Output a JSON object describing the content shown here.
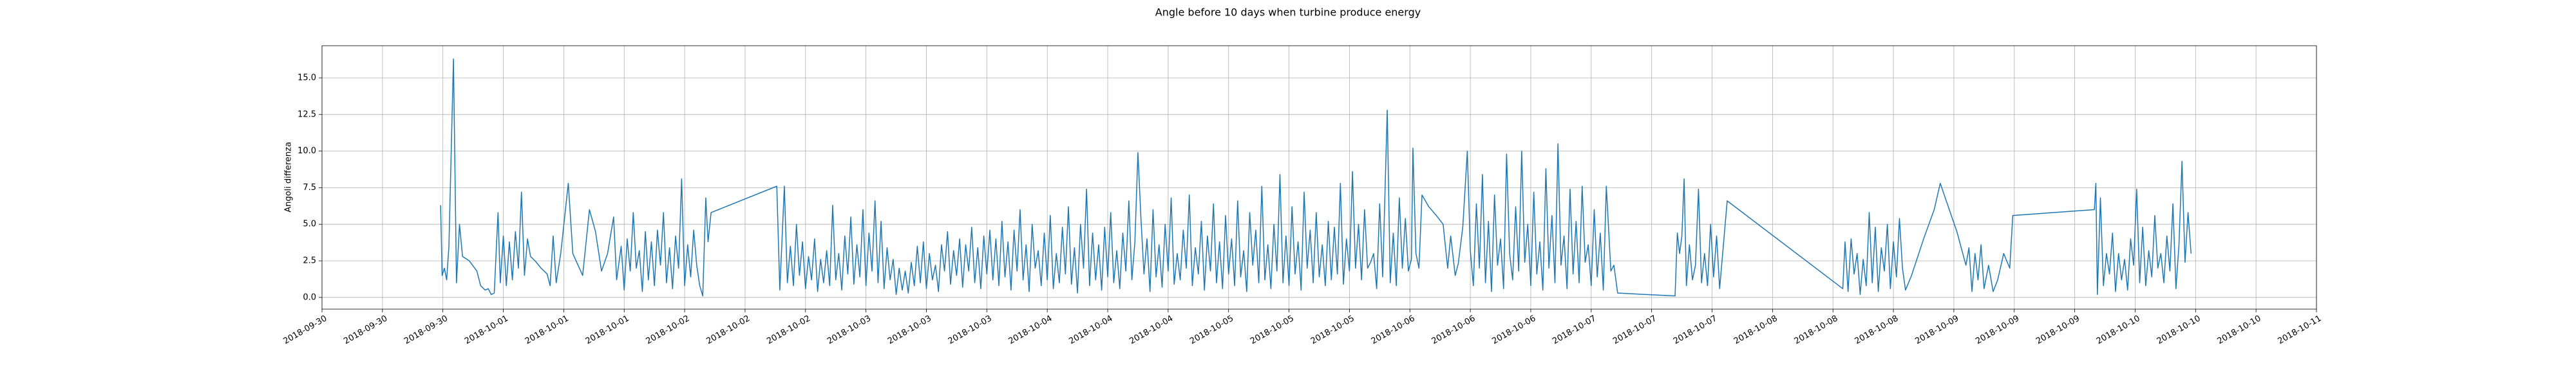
{
  "chart_data": {
    "type": "line",
    "title": "Angle before 10 days when turbine produce energy",
    "y_label": "Angoli differenza",
    "color": "#1f77b4",
    "grid": true,
    "xlim": [
      0,
      264
    ],
    "ylim": [
      -0.8,
      17.2
    ],
    "xticks": [
      {
        "value": 0,
        "label": "2018-09-30"
      },
      {
        "value": 8,
        "label": "2018-09-30"
      },
      {
        "value": 16,
        "label": "2018-09-30"
      },
      {
        "value": 24,
        "label": "2018-10-01"
      },
      {
        "value": 32,
        "label": "2018-10-01"
      },
      {
        "value": 40,
        "label": "2018-10-01"
      },
      {
        "value": 48,
        "label": "2018-10-02"
      },
      {
        "value": 56,
        "label": "2018-10-02"
      },
      {
        "value": 64,
        "label": "2018-10-02"
      },
      {
        "value": 72,
        "label": "2018-10-03"
      },
      {
        "value": 80,
        "label": "2018-10-03"
      },
      {
        "value": 88,
        "label": "2018-10-03"
      },
      {
        "value": 96,
        "label": "2018-10-04"
      },
      {
        "value": 104,
        "label": "2018-10-04"
      },
      {
        "value": 112,
        "label": "2018-10-04"
      },
      {
        "value": 120,
        "label": "2018-10-05"
      },
      {
        "value": 128,
        "label": "2018-10-05"
      },
      {
        "value": 136,
        "label": "2018-10-05"
      },
      {
        "value": 144,
        "label": "2018-10-06"
      },
      {
        "value": 152,
        "label": "2018-10-06"
      },
      {
        "value": 160,
        "label": "2018-10-06"
      },
      {
        "value": 168,
        "label": "2018-10-07"
      },
      {
        "value": 176,
        "label": "2018-10-07"
      },
      {
        "value": 184,
        "label": "2018-10-07"
      },
      {
        "value": 192,
        "label": "2018-10-08"
      },
      {
        "value": 200,
        "label": "2018-10-08"
      },
      {
        "value": 208,
        "label": "2018-10-08"
      },
      {
        "value": 216,
        "label": "2018-10-09"
      },
      {
        "value": 224,
        "label": "2018-10-09"
      },
      {
        "value": 232,
        "label": "2018-10-09"
      },
      {
        "value": 240,
        "label": "2018-10-10"
      },
      {
        "value": 248,
        "label": "2018-10-10"
      },
      {
        "value": 256,
        "label": "2018-10-10"
      },
      {
        "value": 264,
        "label": "2018-10-11"
      }
    ],
    "yticks": [
      {
        "value": 0,
        "label": "0.0"
      },
      2.5,
      {
        "value": 5,
        "label": "5.0"
      },
      7.5,
      {
        "value": 10,
        "label": "10.0"
      },
      12.5,
      {
        "value": 15,
        "label": "15.0"
      }
    ],
    "x": [
      15.7,
      15.9,
      16.2,
      16.5,
      16.8,
      17.4,
      17.8,
      18.2,
      18.6,
      19.5,
      20.5,
      21.0,
      21.6,
      22.0,
      22.4,
      22.8,
      23.3,
      23.6,
      24.0,
      24.4,
      24.8,
      25.2,
      25.6,
      26.0,
      26.4,
      26.8,
      27.2,
      27.6,
      28.2,
      29.0,
      29.8,
      30.2,
      30.6,
      31.0,
      31.6,
      32.6,
      33.2,
      34.5,
      35.4,
      36.2,
      37.0,
      37.8,
      38.6,
      39.0,
      39.6,
      40.0,
      40.4,
      40.8,
      41.2,
      41.6,
      42.0,
      42.4,
      42.8,
      43.2,
      43.6,
      44.0,
      44.4,
      44.8,
      45.2,
      45.6,
      46.0,
      46.4,
      46.8,
      47.2,
      47.6,
      48.0,
      48.4,
      48.8,
      49.2,
      49.6,
      50.0,
      50.4,
      50.8,
      51.1,
      51.5,
      60.2,
      60.6,
      61.2,
      61.6,
      62.0,
      62.4,
      62.8,
      63.2,
      63.6,
      64.0,
      64.4,
      64.8,
      65.2,
      65.6,
      66.0,
      66.4,
      66.8,
      67.2,
      67.6,
      68.0,
      68.4,
      68.8,
      69.2,
      69.6,
      70.0,
      70.4,
      70.8,
      71.2,
      71.6,
      72.0,
      72.4,
      72.8,
      73.2,
      73.6,
      74.0,
      74.4,
      74.8,
      75.2,
      75.6,
      76.0,
      76.4,
      76.8,
      77.2,
      77.6,
      78.0,
      78.4,
      78.8,
      79.2,
      79.6,
      80.0,
      80.4,
      80.8,
      81.2,
      81.6,
      82.0,
      82.4,
      82.8,
      83.2,
      83.6,
      84.0,
      84.4,
      84.8,
      85.2,
      85.6,
      86.0,
      86.4,
      86.8,
      87.2,
      87.6,
      88.0,
      88.4,
      88.8,
      89.2,
      89.6,
      90.0,
      90.4,
      90.8,
      91.2,
      91.6,
      92.0,
      92.4,
      92.8,
      93.2,
      93.6,
      94.0,
      94.4,
      94.8,
      95.2,
      95.6,
      96.0,
      96.4,
      96.8,
      97.2,
      97.6,
      98.0,
      98.4,
      98.8,
      99.2,
      99.6,
      100.0,
      100.4,
      100.8,
      101.2,
      101.6,
      102.0,
      102.4,
      102.8,
      103.2,
      103.6,
      104.0,
      104.4,
      104.8,
      105.2,
      105.6,
      106.0,
      106.4,
      106.8,
      107.2,
      107.6,
      108.0,
      108.4,
      108.8,
      109.2,
      109.6,
      110.0,
      110.4,
      110.8,
      111.2,
      111.6,
      112.0,
      112.4,
      112.8,
      113.2,
      113.6,
      114.0,
      114.4,
      114.8,
      115.2,
      115.6,
      116.0,
      116.4,
      116.8,
      117.2,
      117.6,
      118.0,
      118.4,
      118.8,
      119.2,
      119.6,
      120.0,
      120.4,
      120.8,
      121.2,
      121.6,
      122.0,
      122.4,
      122.8,
      123.2,
      123.6,
      124.0,
      124.4,
      124.8,
      125.2,
      125.6,
      126.0,
      126.4,
      126.8,
      127.2,
      127.6,
      128.0,
      128.4,
      128.8,
      129.2,
      129.6,
      130.0,
      130.4,
      130.8,
      131.2,
      131.6,
      132.0,
      132.4,
      132.8,
      133.2,
      133.6,
      134.0,
      134.4,
      134.8,
      135.2,
      135.6,
      136.0,
      136.4,
      136.8,
      137.2,
      137.6,
      138.0,
      138.4,
      138.8,
      139.2,
      139.6,
      140.0,
      140.4,
      141.0,
      141.4,
      141.8,
      142.2,
      142.6,
      143.0,
      143.4,
      143.8,
      144.2,
      144.4,
      144.8,
      145.2,
      145.6,
      146.5,
      147.5,
      148.4,
      149.0,
      149.4,
      150.0,
      150.4,
      151.0,
      151.6,
      152.0,
      152.4,
      152.8,
      153.2,
      153.6,
      154.0,
      154.4,
      154.8,
      155.2,
      155.6,
      156.0,
      156.4,
      156.8,
      157.2,
      157.6,
      158.0,
      158.4,
      158.8,
      159.2,
      159.6,
      160.0,
      160.4,
      160.8,
      161.2,
      161.6,
      162.0,
      162.4,
      162.8,
      163.2,
      163.6,
      164.0,
      164.4,
      164.8,
      165.2,
      165.6,
      166.0,
      166.4,
      166.8,
      167.2,
      167.6,
      168.0,
      168.4,
      168.8,
      169.2,
      169.6,
      170.0,
      170.6,
      171.0,
      171.5,
      179.1,
      179.4,
      179.7,
      180.0,
      180.3,
      180.6,
      181.0,
      181.4,
      181.8,
      182.2,
      182.6,
      183.0,
      183.4,
      183.8,
      184.2,
      184.6,
      185.0,
      185.4,
      186.0,
      201.3,
      201.6,
      202.0,
      202.4,
      202.8,
      203.2,
      203.6,
      204.0,
      204.4,
      204.8,
      205.2,
      205.6,
      206.0,
      206.4,
      206.8,
      207.2,
      207.6,
      208.0,
      208.4,
      208.8,
      209.2,
      209.6,
      210.4,
      212.0,
      213.4,
      214.2,
      216.4,
      217.6,
      218.0,
      218.4,
      218.8,
      219.2,
      219.6,
      220.0,
      220.6,
      221.2,
      221.8,
      222.6,
      223.4,
      223.8,
      234.6,
      234.8,
      235.0,
      235.4,
      235.8,
      236.2,
      236.6,
      237.0,
      237.4,
      237.8,
      238.2,
      238.6,
      239.0,
      239.4,
      239.8,
      240.2,
      240.6,
      241.0,
      241.4,
      241.8,
      242.2,
      242.6,
      243.0,
      243.4,
      243.8,
      244.2,
      244.6,
      245.0,
      245.4,
      245.8,
      246.2,
      246.6,
      247.0,
      247.4
    ],
    "values": [
      6.3,
      1.5,
      2.0,
      1.2,
      3.5,
      16.3,
      1.0,
      5.0,
      2.8,
      2.5,
      1.8,
      0.8,
      0.5,
      0.6,
      0.2,
      0.3,
      5.8,
      1.0,
      4.2,
      0.8,
      3.8,
      1.2,
      4.5,
      2.0,
      7.2,
      1.5,
      4.0,
      2.8,
      2.5,
      2.0,
      1.6,
      0.8,
      4.2,
      1.0,
      3.0,
      7.8,
      3.0,
      1.5,
      6.0,
      4.5,
      1.8,
      3.0,
      5.5,
      1.2,
      3.5,
      0.5,
      4.0,
      1.8,
      5.8,
      2.0,
      3.2,
      0.4,
      4.5,
      1.2,
      3.8,
      0.8,
      4.6,
      2.2,
      5.8,
      1.0,
      3.4,
      0.6,
      4.2,
      2.0,
      8.1,
      0.8,
      3.6,
      1.4,
      4.6,
      2.2,
      0.8,
      0.1,
      6.8,
      3.8,
      5.8,
      7.6,
      0.5,
      7.6,
      1.0,
      3.5,
      0.8,
      5.0,
      1.5,
      3.8,
      0.6,
      2.8,
      1.2,
      4.0,
      0.4,
      2.6,
      1.0,
      3.2,
      0.8,
      6.3,
      1.2,
      3.0,
      0.5,
      4.2,
      1.6,
      5.5,
      0.9,
      3.6,
      1.4,
      6.0,
      0.8,
      4.4,
      1.8,
      6.6,
      1.0,
      5.2,
      0.6,
      3.4,
      1.2,
      2.6,
      0.2,
      2.0,
      0.5,
      1.8,
      0.3,
      2.4,
      0.8,
      3.5,
      1.0,
      3.8,
      0.6,
      3.0,
      1.2,
      2.2,
      0.4,
      3.6,
      1.8,
      4.5,
      0.9,
      3.2,
      1.5,
      4.0,
      0.7,
      3.6,
      1.8,
      4.8,
      1.0,
      3.4,
      0.6,
      4.2,
      1.6,
      4.6,
      1.2,
      4.0,
      0.8,
      5.2,
      1.4,
      3.8,
      0.5,
      4.6,
      1.8,
      6.0,
      1.2,
      3.6,
      0.4,
      5.0,
      2.0,
      3.2,
      0.8,
      4.4,
      1.2,
      5.6,
      0.6,
      3.0,
      1.0,
      4.8,
      1.6,
      6.2,
      0.9,
      3.4,
      0.3,
      5.0,
      2.0,
      7.4,
      0.8,
      4.4,
      1.2,
      3.6,
      0.5,
      4.8,
      1.4,
      5.8,
      1.0,
      3.2,
      0.6,
      4.4,
      1.8,
      6.6,
      1.2,
      3.8,
      9.9,
      5.4,
      1.6,
      4.0,
      0.4,
      6.0,
      1.4,
      3.6,
      0.7,
      5.0,
      1.8,
      6.8,
      0.9,
      3.0,
      1.2,
      4.6,
      2.0,
      7.0,
      0.8,
      3.4,
      1.6,
      5.2,
      0.5,
      4.2,
      1.8,
      6.4,
      1.0,
      3.8,
      0.6,
      5.6,
      1.6,
      4.0,
      0.8,
      6.6,
      1.4,
      3.2,
      0.4,
      5.8,
      2.2,
      4.6,
      1.0,
      7.6,
      1.2,
      3.6,
      0.6,
      5.0,
      1.8,
      8.4,
      1.0,
      4.2,
      0.8,
      6.2,
      1.6,
      3.8,
      0.5,
      7.2,
      2.0,
      4.6,
      1.0,
      5.8,
      1.4,
      3.6,
      0.8,
      5.2,
      1.2,
      4.8,
      1.6,
      7.8,
      0.9,
      4.0,
      1.8,
      8.6,
      2.0,
      5.0,
      1.2,
      6.0,
      2.0,
      2.4,
      3.0,
      0.6,
      6.4,
      1.4,
      12.8,
      1.0,
      4.4,
      0.8,
      6.8,
      2.0,
      5.4,
      1.8,
      2.6,
      10.2,
      3.0,
      2.0,
      7.0,
      6.2,
      5.6,
      5.0,
      2.0,
      4.2,
      1.5,
      2.3,
      4.8,
      10.0,
      3.2,
      0.8,
      6.4,
      2.0,
      8.4,
      1.0,
      5.2,
      0.4,
      7.0,
      2.2,
      4.0,
      0.6,
      9.8,
      3.0,
      1.2,
      6.2,
      1.8,
      10.0,
      2.4,
      5.0,
      0.8,
      7.2,
      1.6,
      3.8,
      0.5,
      8.8,
      2.0,
      5.6,
      1.0,
      10.5,
      2.2,
      4.2,
      0.6,
      7.4,
      1.6,
      5.2,
      1.0,
      7.6,
      2.4,
      3.6,
      0.8,
      6.0,
      1.4,
      4.4,
      0.5,
      7.6,
      1.8,
      2.2,
      0.3,
      0.1,
      4.4,
      3.0,
      4.2,
      8.1,
      0.8,
      3.6,
      1.2,
      2.2,
      7.4,
      1.0,
      3.0,
      0.8,
      5.0,
      1.4,
      4.2,
      0.6,
      3.0,
      6.6,
      0.6,
      3.8,
      0.4,
      4.0,
      1.6,
      3.0,
      0.2,
      2.6,
      0.8,
      5.8,
      1.0,
      4.8,
      0.4,
      3.4,
      1.8,
      5.0,
      0.6,
      3.8,
      1.4,
      5.4,
      2.0,
      0.5,
      1.5,
      4.0,
      6.0,
      7.8,
      4.5,
      2.2,
      3.4,
      0.4,
      3.0,
      1.2,
      3.6,
      0.6,
      2.2,
      0.4,
      1.2,
      3.0,
      2.0,
      5.6,
      6.0,
      7.8,
      0.2,
      6.8,
      0.8,
      3.0,
      1.6,
      4.4,
      0.4,
      3.0,
      1.2,
      2.6,
      0.5,
      4.0,
      2.2,
      7.4,
      1.0,
      4.8,
      0.8,
      3.2,
      1.4,
      5.6,
      2.0,
      3.0,
      1.0,
      4.2,
      1.8,
      6.4,
      0.6,
      3.6,
      9.3,
      2.4,
      5.8,
      3.0
    ]
  }
}
